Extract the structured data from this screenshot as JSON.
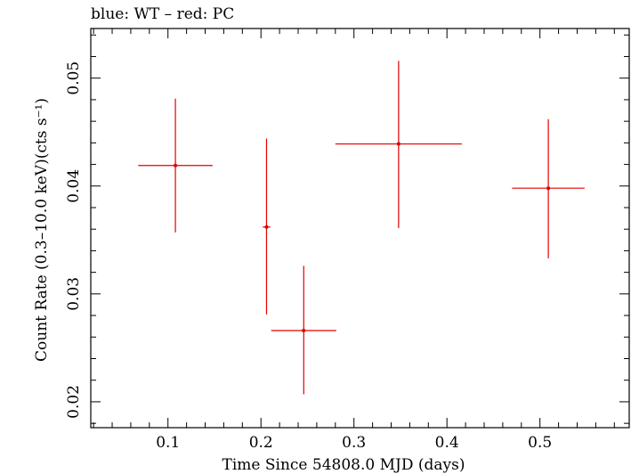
{
  "chart_data": {
    "type": "scatter",
    "title": "blue: WT – red: PC",
    "xlabel": "Time Since 54808.0 MJD (days)",
    "ylabel": "Count Rate (0.3–10.0 keV)(cts s⁻¹)",
    "xlim": [
      0.017,
      0.596
    ],
    "ylim": [
      0.0176,
      0.0546
    ],
    "xticks": [
      0.1,
      0.2,
      0.3,
      0.4,
      0.5
    ],
    "xtick_labels": [
      "0.1",
      "0.2",
      "0.3",
      "0.4",
      "0.5"
    ],
    "yticks": [
      0.02,
      0.03,
      0.04,
      0.05
    ],
    "ytick_labels": [
      "0.02",
      "0.03",
      "0.04",
      "0.05"
    ],
    "grid": false,
    "series": [
      {
        "color": "#e00000",
        "points": [
          {
            "x": 0.108,
            "y": 0.0419,
            "xerr_lo": 0.04,
            "xerr_hi": 0.04,
            "yerr_lo": 0.0062,
            "yerr_hi": 0.0062
          },
          {
            "x": 0.206,
            "y": 0.0362,
            "xerr_lo": 0.004,
            "xerr_hi": 0.004,
            "yerr_lo": 0.0081,
            "yerr_hi": 0.0082
          },
          {
            "x": 0.246,
            "y": 0.0266,
            "xerr_lo": 0.035,
            "xerr_hi": 0.035,
            "yerr_lo": 0.0059,
            "yerr_hi": 0.006
          },
          {
            "x": 0.348,
            "y": 0.0439,
            "xerr_lo": 0.068,
            "xerr_hi": 0.068,
            "yerr_lo": 0.0078,
            "yerr_hi": 0.0077
          },
          {
            "x": 0.509,
            "y": 0.0398,
            "xerr_lo": 0.039,
            "xerr_hi": 0.039,
            "yerr_lo": 0.0065,
            "yerr_hi": 0.0064
          }
        ]
      }
    ]
  }
}
